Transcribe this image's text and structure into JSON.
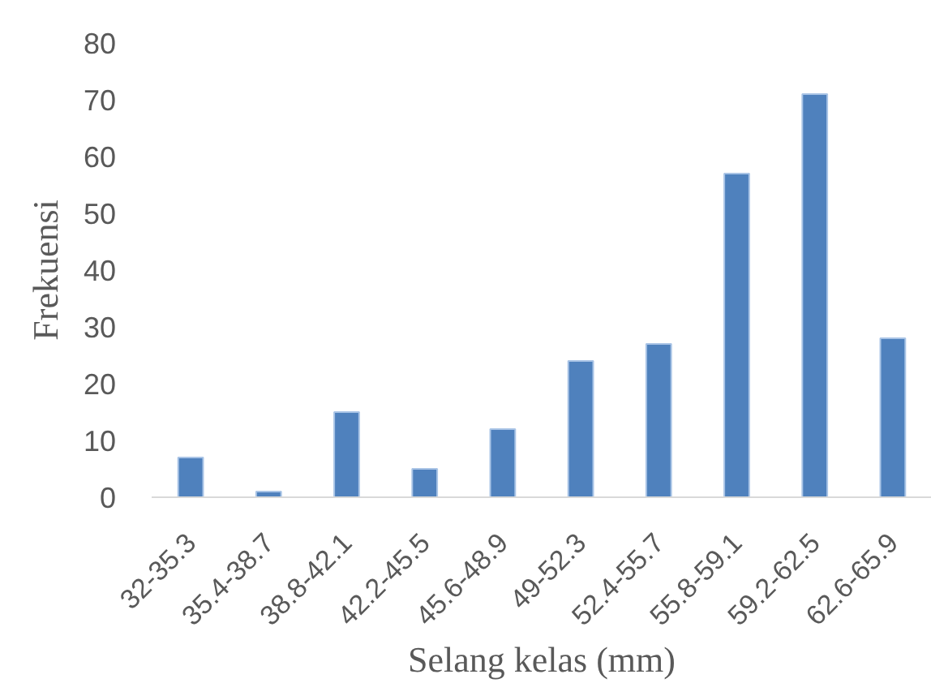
{
  "chart_data": {
    "type": "bar",
    "xlabel": "Selang kelas (mm)",
    "ylabel": "Frekuensi",
    "categories": [
      "32-35.3",
      "35.4-38.7",
      "38.8-42.1",
      "42.2-45.5",
      "45.6-48.9",
      "49-52.3",
      "52.4-55.7",
      "55.8-59.1",
      "59.2-62.5",
      "62.6-65.9"
    ],
    "values": [
      7,
      1,
      15,
      5,
      12,
      24,
      27,
      57,
      71,
      28
    ],
    "color": "#4f81bd",
    "ylim": [
      0,
      80
    ],
    "yticks": [
      0,
      10,
      20,
      30,
      40,
      50,
      60,
      70,
      80
    ]
  }
}
